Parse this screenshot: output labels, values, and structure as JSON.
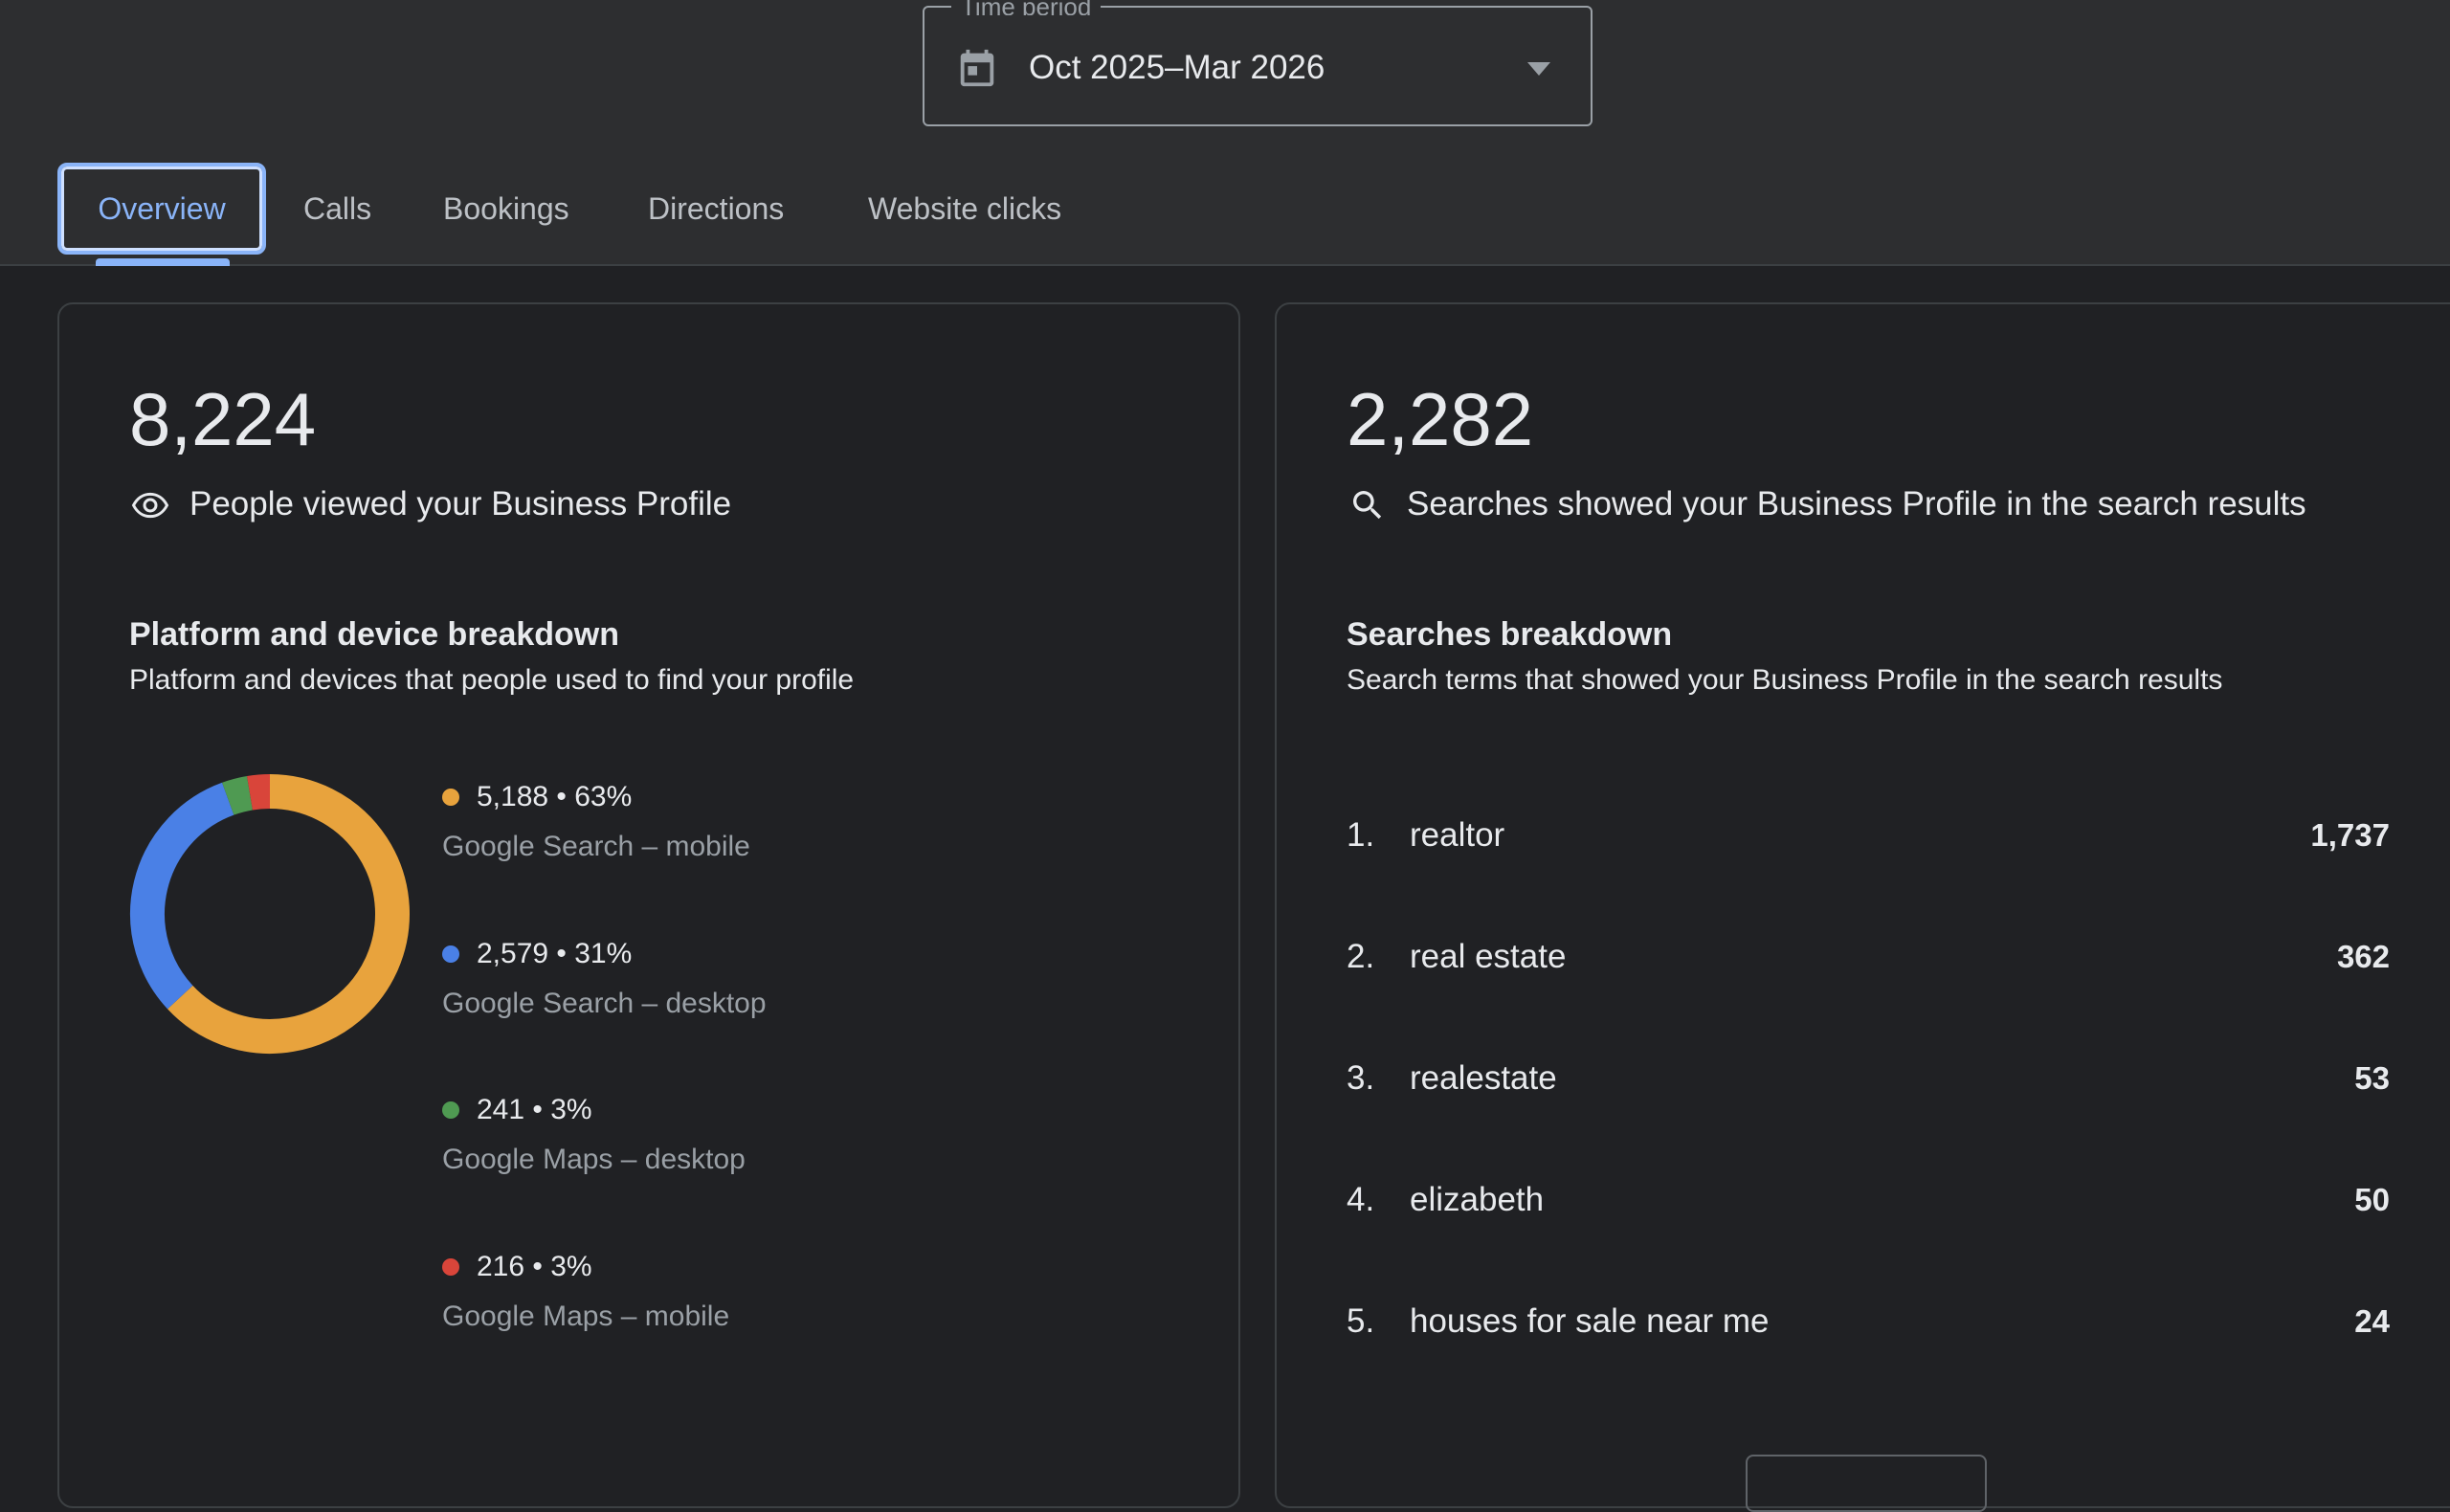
{
  "time_period": {
    "label": "Time period",
    "value": "Oct 2025–Mar 2026",
    "icon": "calendar-icon"
  },
  "tabs": [
    {
      "label": "Overview",
      "active": true
    },
    {
      "label": "Calls"
    },
    {
      "label": "Bookings"
    },
    {
      "label": "Directions"
    },
    {
      "label": "Website clicks"
    }
  ],
  "views": {
    "count": "8,224",
    "label": "People viewed your Business Profile",
    "icon": "eye-icon"
  },
  "platform_breakdown": {
    "title": "Platform and device breakdown",
    "subtitle": "Platform and devices that people used to find your profile",
    "items": [
      {
        "value": "5,188 • 63%",
        "name": "Google Search – mobile",
        "color": "#e8a33d",
        "count": 5188
      },
      {
        "value": "2,579 • 31%",
        "name": "Google Search – desktop",
        "color": "#4a80e6",
        "count": 2579
      },
      {
        "value": "241 • 3%",
        "name": "Google Maps – desktop",
        "color": "#4f9a52",
        "count": 241
      },
      {
        "value": "216 • 3%",
        "name": "Google Maps – mobile",
        "color": "#d9453a",
        "count": 216
      }
    ]
  },
  "searches": {
    "count": "2,282",
    "label": "Searches showed your Business Profile in the search results",
    "icon": "search-icon"
  },
  "searches_breakdown": {
    "title": "Searches breakdown",
    "subtitle": "Search terms that showed your Business Profile in the search results",
    "terms": [
      {
        "rank": "1.",
        "term": "realtor",
        "count": "1,737"
      },
      {
        "rank": "2.",
        "term": "real estate",
        "count": "362"
      },
      {
        "rank": "3.",
        "term": "realestate",
        "count": "53"
      },
      {
        "rank": "4.",
        "term": "elizabeth",
        "count": "50"
      },
      {
        "rank": "5.",
        "term": "houses for sale near me",
        "count": "24"
      }
    ]
  }
}
